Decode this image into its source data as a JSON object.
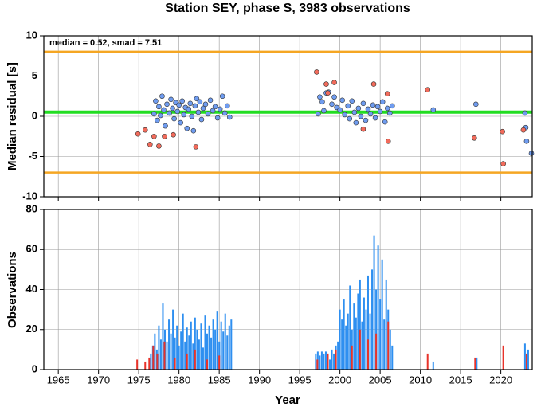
{
  "chart_data": [
    {
      "type": "scatter",
      "title": "Station SEY, phase S, 3983 observations",
      "annotation": "median = 0.52, smad = 7.51",
      "ylabel": "Median residual [s]",
      "xlim": [
        1963.2,
        2023.9
      ],
      "xticks": [
        1965,
        1970,
        1975,
        1980,
        1985,
        1990,
        1995,
        2000,
        2005,
        2010,
        2015,
        2020
      ],
      "ylim": [
        -10,
        10
      ],
      "yticks": [
        -10,
        -5,
        0,
        5,
        10
      ],
      "grid": true,
      "hlines": [
        {
          "value": 0.52,
          "color": "#22dd22"
        },
        {
          "value": 8.03,
          "color": "#f5a623"
        },
        {
          "value": -6.99,
          "color": "#f5a623"
        }
      ],
      "series": [
        {
          "color": "#6f9cf0",
          "x": [
            1976.9,
            1977.1,
            1977.3,
            1977.5,
            1977.7,
            1977.9,
            1978.1,
            1978.3,
            1978.5,
            1978.8,
            1979.0,
            1979.2,
            1979.4,
            1979.6,
            1979.8,
            1980.0,
            1980.2,
            1980.4,
            1980.6,
            1980.8,
            1981.0,
            1981.2,
            1981.4,
            1981.6,
            1981.8,
            1982.0,
            1982.2,
            1982.4,
            1982.6,
            1982.8,
            1983.0,
            1983.3,
            1983.6,
            1983.9,
            1984.2,
            1984.5,
            1984.8,
            1985.1,
            1985.4,
            1985.7,
            1986.0,
            1986.3,
            1997.3,
            1997.5,
            1997.8,
            1998.0,
            1998.3,
            1998.6,
            1999.0,
            1999.3,
            1999.6,
            2000.0,
            2000.3,
            2000.6,
            2001.0,
            2001.2,
            2001.5,
            2001.8,
            2002.0,
            2002.3,
            2002.6,
            2002.9,
            2003.2,
            2003.5,
            2003.8,
            2004.1,
            2004.4,
            2004.7,
            2005.0,
            2005.3,
            2005.6,
            2005.9,
            2006.2,
            2006.5,
            2011.6,
            2016.9,
            2023.0,
            2023.1,
            2023.2,
            2023.8
          ],
          "values": [
            0.3,
            1.9,
            -0.5,
            1.2,
            0.1,
            2.5,
            0.8,
            -1.2,
            1.5,
            0.4,
            2.1,
            1.0,
            -0.3,
            1.7,
            0.6,
            1.4,
            -0.8,
            1.9,
            0.2,
            1.1,
            -1.5,
            0.9,
            1.6,
            0.0,
            -1.8,
            1.3,
            2.2,
            0.5,
            1.8,
            -0.4,
            1.0,
            1.5,
            0.3,
            2.0,
            0.7,
            1.2,
            -0.2,
            0.9,
            2.5,
            0.4,
            1.3,
            -0.1,
            0.3,
            2.4,
            1.8,
            0.7,
            2.9,
            3.0,
            1.5,
            2.4,
            1.1,
            0.8,
            2.0,
            0.2,
            1.3,
            -0.3,
            1.9,
            0.5,
            -0.8,
            1.0,
            0.0,
            1.6,
            -0.5,
            0.9,
            0.3,
            1.4,
            -0.2,
            1.2,
            0.6,
            1.8,
            -0.7,
            1.0,
            0.4,
            1.3,
            0.8,
            1.5,
            0.4,
            -1.4,
            -3.1,
            -4.6
          ]
        },
        {
          "color": "#f26b5b",
          "x": [
            1974.9,
            1975.8,
            1976.4,
            1976.9,
            1977.5,
            1978.2,
            1979.3,
            1982.1,
            1997.1,
            1998.3,
            1998.5,
            1999.3,
            2002.9,
            2004.2,
            2005.9,
            2006.0,
            2010.9,
            2016.7,
            2020.2,
            2020.3,
            2022.8
          ],
          "values": [
            -2.2,
            -1.7,
            -3.5,
            -2.5,
            -3.7,
            -2.5,
            -2.3,
            -3.8,
            5.5,
            4.0,
            2.9,
            4.2,
            -1.6,
            4.0,
            2.8,
            -3.1,
            3.3,
            -2.7,
            -1.9,
            -5.9,
            -1.7
          ]
        }
      ]
    },
    {
      "type": "bar",
      "xlabel": "Year",
      "ylabel": "Observations",
      "xlim": [
        1963.2,
        2023.9
      ],
      "xticks": [
        1965,
        1970,
        1975,
        1980,
        1985,
        1990,
        1995,
        2000,
        2005,
        2010,
        2015,
        2020
      ],
      "ylim": [
        0,
        80
      ],
      "yticks": [
        0,
        20,
        40,
        60,
        80
      ],
      "grid": true,
      "series": [
        {
          "color": "#2e8ff0",
          "x": [
            1976.5,
            1976.75,
            1977,
            1977.25,
            1977.5,
            1977.75,
            1978,
            1978.25,
            1978.5,
            1978.75,
            1979,
            1979.25,
            1979.5,
            1979.75,
            1980,
            1980.25,
            1980.5,
            1980.75,
            1981,
            1981.25,
            1981.5,
            1981.75,
            1982,
            1982.25,
            1982.5,
            1982.75,
            1983,
            1983.25,
            1983.5,
            1983.75,
            1984,
            1984.25,
            1984.5,
            1984.75,
            1985,
            1985.25,
            1985.5,
            1985.75,
            1986,
            1986.25,
            1986.5,
            1997,
            1997.25,
            1997.5,
            1997.75,
            1998,
            1998.25,
            1998.5,
            1998.75,
            1999,
            1999.25,
            1999.5,
            1999.75,
            2000,
            2000.25,
            2000.5,
            2000.75,
            2001,
            2001.25,
            2001.5,
            2001.75,
            2002,
            2002.25,
            2002.5,
            2002.75,
            2003,
            2003.25,
            2003.5,
            2003.75,
            2004,
            2004.25,
            2004.5,
            2004.75,
            2005,
            2005.25,
            2005.5,
            2005.75,
            2006,
            2006.25,
            2006.5,
            2011.6,
            2017.0,
            2023.0,
            2023.4
          ],
          "values": [
            8,
            12,
            18,
            10,
            22,
            15,
            33,
            20,
            14,
            25,
            18,
            30,
            16,
            22,
            12,
            19,
            28,
            14,
            21,
            17,
            24,
            13,
            26,
            20,
            15,
            23,
            11,
            27,
            18,
            22,
            16,
            25,
            20,
            29,
            14,
            24,
            19,
            28,
            17,
            22,
            25,
            8,
            9,
            7,
            9,
            8,
            9,
            6,
            5,
            10,
            8,
            12,
            14,
            30,
            25,
            35,
            22,
            28,
            42,
            20,
            33,
            26,
            38,
            45,
            24,
            36,
            30,
            47,
            28,
            50,
            67,
            40,
            62,
            35,
            55,
            25,
            45,
            30,
            20,
            12,
            4,
            6,
            13,
            10
          ]
        },
        {
          "color": "#e8332a",
          "x": [
            1974.8,
            1975.8,
            1976.3,
            1976.8,
            1977.3,
            1978.2,
            1979.5,
            1981.0,
            1982.0,
            1983.5,
            1985.0,
            1997.2,
            1998.5,
            1999.5,
            2001.5,
            2002.5,
            2003.5,
            2004.5,
            2006.0,
            2010.9,
            2016.8,
            2020.3,
            2023.2
          ],
          "values": [
            5,
            4,
            6,
            12,
            8,
            14,
            6,
            8,
            10,
            5,
            7,
            5,
            8,
            10,
            12,
            20,
            15,
            18,
            24,
            8,
            6,
            12,
            8
          ]
        }
      ]
    }
  ]
}
